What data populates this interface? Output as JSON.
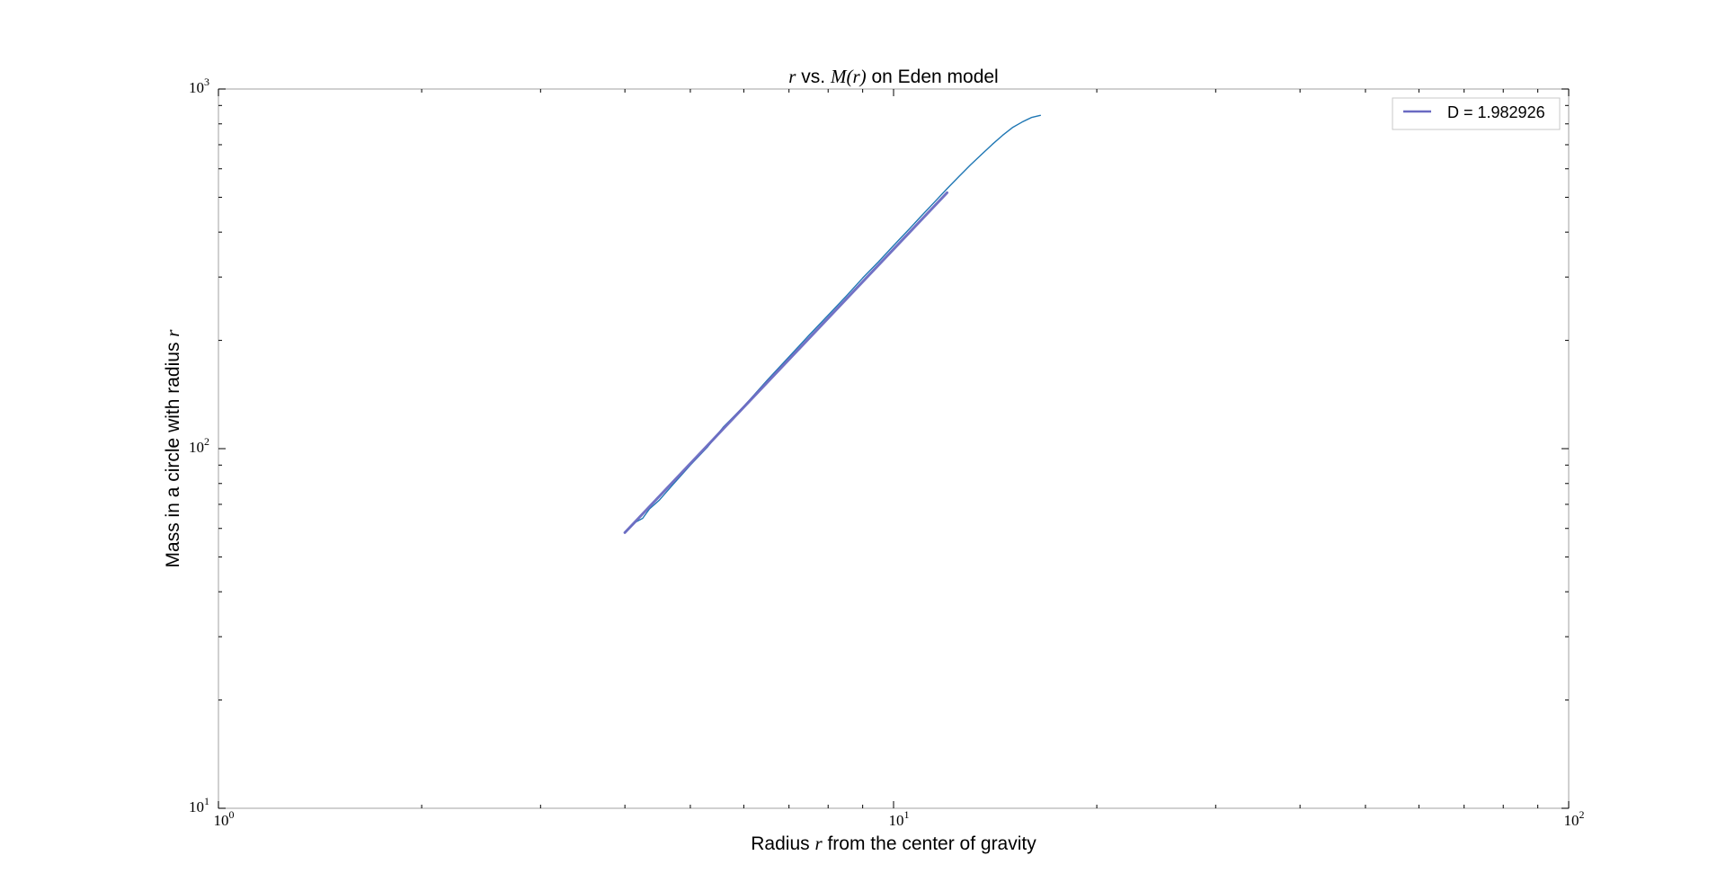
{
  "chart_data": {
    "type": "line",
    "title": {
      "parts": [
        {
          "text": "r",
          "math": true
        },
        {
          "text": " vs. ",
          "math": false
        },
        {
          "text": "M(r)",
          "math": true
        },
        {
          "text": " on Eden model",
          "math": false
        }
      ]
    },
    "xlabel": {
      "parts": [
        {
          "text": "Radius ",
          "math": false
        },
        {
          "text": "r",
          "math": true
        },
        {
          "text": " from the center of gravity",
          "math": false
        }
      ]
    },
    "ylabel": {
      "parts": [
        {
          "text": "Mass in a circle with radius ",
          "math": false
        },
        {
          "text": "r",
          "math": true
        }
      ]
    },
    "xscale": "log",
    "yscale": "log",
    "xlim": [
      1,
      100
    ],
    "ylim": [
      10,
      1000
    ],
    "x_ticks": [
      {
        "base": "10",
        "exp": "0",
        "value": 1
      },
      {
        "base": "10",
        "exp": "1",
        "value": 10
      },
      {
        "base": "10",
        "exp": "2",
        "value": 100
      }
    ],
    "y_ticks": [
      {
        "base": "10",
        "exp": "1",
        "value": 10
      },
      {
        "base": "10",
        "exp": "2",
        "value": 100
      },
      {
        "base": "10",
        "exp": "3",
        "value": 1000
      }
    ],
    "grid": false,
    "legend_position": "top-right",
    "series": [
      {
        "type": "data",
        "color": "#1f77b4",
        "x": [
          4.0,
          4.15,
          4.25,
          4.35,
          4.5,
          4.7,
          5.0,
          5.3,
          5.6,
          6.0,
          6.5,
          7.0,
          7.5,
          8.0,
          8.5,
          9.0,
          9.5,
          10.0,
          10.5,
          11.0,
          11.5,
          12.0,
          12.5,
          13.0,
          13.5,
          14.0,
          14.5,
          15.0,
          15.5,
          16.0,
          16.5
        ],
        "y": [
          58.5,
          62.5,
          64,
          68,
          72,
          79,
          90,
          101,
          115,
          131,
          155,
          180,
          207,
          235,
          265,
          298,
          331,
          367,
          404,
          444,
          485,
          528,
          571,
          615,
          658,
          701,
          743,
          781,
          809,
          833,
          845
        ]
      },
      {
        "type": "fit",
        "name": "D = 1.982926",
        "color": "#6a6ac2",
        "slope": 1.982926,
        "x": [
          4.0,
          12.0
        ],
        "y": [
          58.4,
          514.6
        ]
      }
    ]
  }
}
